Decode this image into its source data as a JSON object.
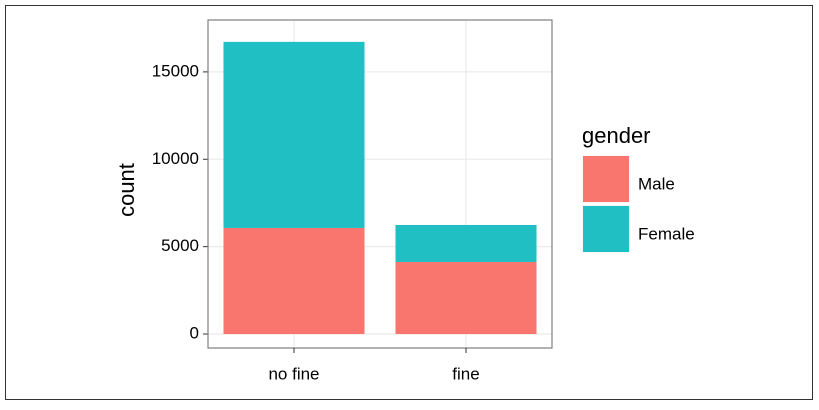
{
  "chart_data": {
    "type": "bar",
    "stacked": true,
    "y_label": "count",
    "legend_title": "gender",
    "categories": [
      "no fine",
      "fine"
    ],
    "series": [
      {
        "name": "Male",
        "color": "#F8766D",
        "values": [
          6070,
          4120
        ]
      },
      {
        "name": "Female",
        "color": "#1FBFC4",
        "values": [
          10650,
          2120
        ]
      }
    ],
    "ylim": [
      -800,
      17970
    ],
    "yticks": [
      0,
      5000,
      10000,
      15000
    ],
    "grid": true,
    "legend_position": "right"
  }
}
